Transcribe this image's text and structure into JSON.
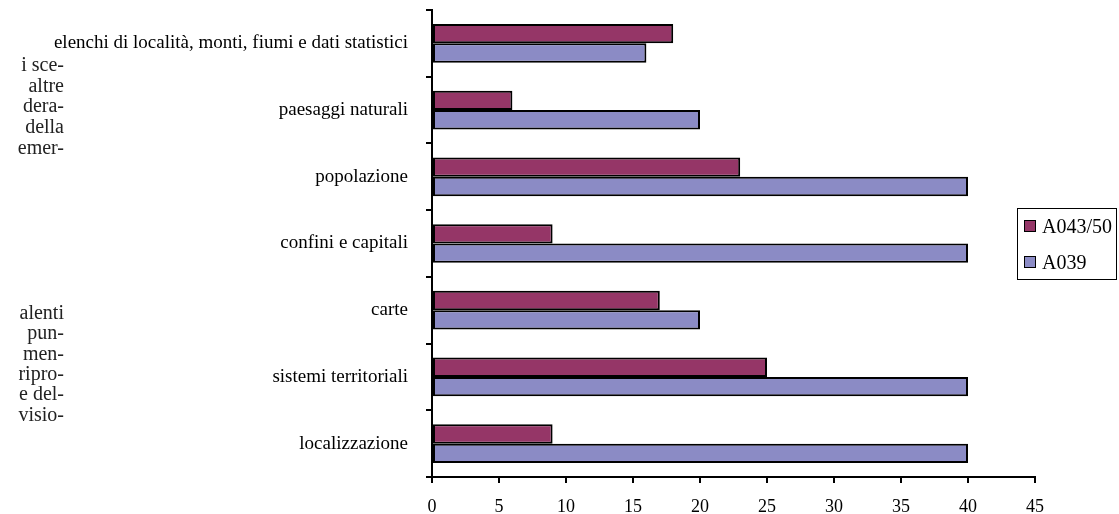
{
  "chart_data": {
    "type": "bar",
    "orientation": "horizontal",
    "categories": [
      "elenchi di località, monti, fiumi e dati statistici",
      "paesaggi naturali",
      "popolazione",
      "confini e capitali",
      "carte",
      "sistemi territoriali",
      "localizzazione"
    ],
    "series": [
      {
        "name": "A043/50",
        "color": "#953667",
        "values": [
          18,
          6,
          23,
          9,
          17,
          25,
          9
        ]
      },
      {
        "name": "A039",
        "color": "#8b8bc5",
        "values": [
          16,
          20,
          40,
          40,
          20,
          40,
          40
        ]
      }
    ],
    "xlim": [
      0,
      45
    ],
    "xticks": [
      0,
      5,
      10,
      15,
      20,
      25,
      30,
      35,
      40,
      45
    ],
    "grid": false,
    "legend": "right",
    "annotations": [
      "i sce-",
      "altre",
      "dera-",
      "della",
      "emer-",
      "alenti",
      "pun-",
      "men-",
      "ripro-",
      "e del-",
      "visio-"
    ]
  }
}
